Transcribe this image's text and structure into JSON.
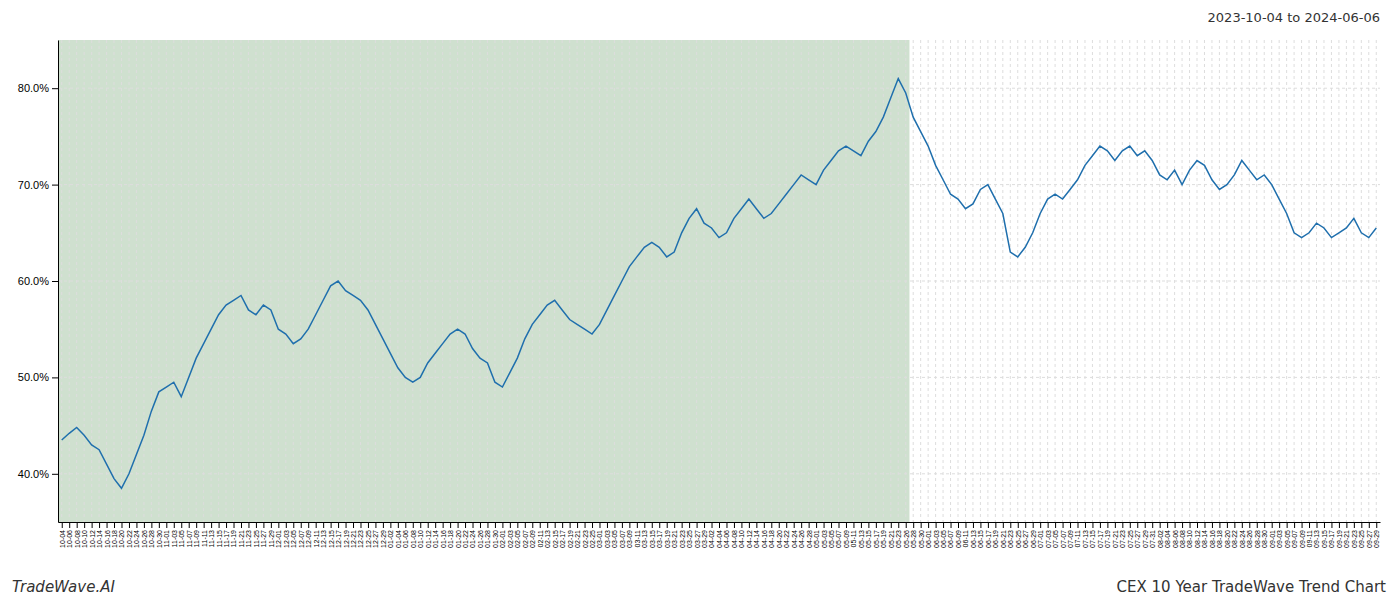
{
  "chart_data": {
    "type": "line",
    "title": "CEX 10 Year TradeWave Trend Chart",
    "subtitle": "2023-10-04 to 2024-06-06",
    "annotations": [
      "TradeWave.AI"
    ],
    "color": "#1f6fad",
    "grid": true,
    "ylim": [
      35.0,
      85.0
    ],
    "yticks": [
      {
        "value": 40.0,
        "label": "40.0%"
      },
      {
        "value": 50.0,
        "label": "50.0%"
      },
      {
        "value": 60.0,
        "label": "60.0%"
      },
      {
        "value": 70.0,
        "label": "70.0%"
      },
      {
        "value": 80.0,
        "label": "80.0%"
      }
    ],
    "shaded_region": {
      "start": "10-04",
      "end": "05-26",
      "color": "#cfe0cf"
    },
    "categories": [
      "10-04",
      "10-06",
      "10-08",
      "10-10",
      "10-12",
      "10-14",
      "10-16",
      "10-18",
      "10-20",
      "10-22",
      "10-24",
      "10-26",
      "10-28",
      "10-30",
      "11-01",
      "11-03",
      "11-05",
      "11-07",
      "11-09",
      "11-11",
      "11-13",
      "11-15",
      "11-17",
      "11-19",
      "11-21",
      "11-23",
      "11-25",
      "11-27",
      "11-29",
      "12-01",
      "12-03",
      "12-05",
      "12-07",
      "12-09",
      "12-11",
      "12-13",
      "12-15",
      "12-17",
      "12-19",
      "12-21",
      "12-23",
      "12-25",
      "12-27",
      "12-29",
      "01-02",
      "01-04",
      "01-06",
      "01-08",
      "01-10",
      "01-12",
      "01-14",
      "01-16",
      "01-18",
      "01-20",
      "01-22",
      "01-24",
      "01-26",
      "01-28",
      "01-30",
      "02-01",
      "02-03",
      "02-05",
      "02-07",
      "02-09",
      "02-11",
      "02-13",
      "02-15",
      "02-17",
      "02-19",
      "02-21",
      "02-23",
      "02-25",
      "03-01",
      "03-03",
      "03-05",
      "03-07",
      "03-09",
      "03-11",
      "03-13",
      "03-15",
      "03-17",
      "03-19",
      "03-21",
      "03-23",
      "03-25",
      "03-27",
      "03-29",
      "04-02",
      "04-04",
      "04-06",
      "04-08",
      "04-10",
      "04-12",
      "04-14",
      "04-16",
      "04-18",
      "04-20",
      "04-22",
      "04-24",
      "04-26",
      "04-28",
      "05-01",
      "05-03",
      "05-05",
      "05-07",
      "05-09",
      "05-11",
      "05-13",
      "05-15",
      "05-17",
      "05-19",
      "05-21",
      "05-23",
      "05-26",
      "05-28",
      "05-30",
      "06-01",
      "06-03",
      "06-05",
      "06-07",
      "06-09",
      "06-11",
      "06-13",
      "06-15",
      "06-17",
      "06-19",
      "06-21",
      "06-23",
      "06-25",
      "06-27",
      "06-29",
      "07-01",
      "07-03",
      "07-05",
      "07-07",
      "07-09",
      "07-11",
      "07-13",
      "07-15",
      "07-17",
      "07-19",
      "07-21",
      "07-23",
      "07-25",
      "07-27",
      "07-29",
      "07-31",
      "08-02",
      "08-04",
      "08-06",
      "08-08",
      "08-10",
      "08-12",
      "08-14",
      "08-16",
      "08-18",
      "08-20",
      "08-22",
      "08-24",
      "08-26",
      "08-28",
      "08-30",
      "09-01",
      "09-03",
      "09-05",
      "09-07",
      "09-09",
      "09-11",
      "09-13",
      "09-15",
      "09-17",
      "09-19",
      "09-21",
      "09-23",
      "09-25",
      "09-27",
      "09-29"
    ],
    "values": [
      43.5,
      44.2,
      44.8,
      44.0,
      43.0,
      42.5,
      41.0,
      39.5,
      38.5,
      40.0,
      42.0,
      44.0,
      46.5,
      48.5,
      49.0,
      49.5,
      48.0,
      50.0,
      52.0,
      53.5,
      55.0,
      56.5,
      57.5,
      58.0,
      58.5,
      57.0,
      56.5,
      57.5,
      57.0,
      55.0,
      54.5,
      53.5,
      54.0,
      55.0,
      56.5,
      58.0,
      59.5,
      60.0,
      59.0,
      58.5,
      58.0,
      57.0,
      55.5,
      54.0,
      52.5,
      51.0,
      50.0,
      49.5,
      50.0,
      51.5,
      52.5,
      53.5,
      54.5,
      55.0,
      54.5,
      53.0,
      52.0,
      51.5,
      49.5,
      49.0,
      50.5,
      52.0,
      54.0,
      55.5,
      56.5,
      57.5,
      58.0,
      57.0,
      56.0,
      55.5,
      55.0,
      54.5,
      55.5,
      57.0,
      58.5,
      60.0,
      61.5,
      62.5,
      63.5,
      64.0,
      63.5,
      62.5,
      63.0,
      65.0,
      66.5,
      67.5,
      66.0,
      65.5,
      64.5,
      65.0,
      66.5,
      67.5,
      68.5,
      67.5,
      66.5,
      67.0,
      68.0,
      69.0,
      70.0,
      71.0,
      70.5,
      70.0,
      71.5,
      72.5,
      73.5,
      74.0,
      73.5,
      73.0,
      74.5,
      75.5,
      77.0,
      79.0,
      81.0,
      79.5,
      77.0,
      75.5,
      74.0,
      72.0,
      70.5,
      69.0,
      68.5,
      67.5,
      68.0,
      69.5,
      70.0,
      68.5,
      67.0,
      63.0,
      62.5,
      63.5,
      65.0,
      67.0,
      68.5,
      69.0,
      68.5,
      69.5,
      70.5,
      72.0,
      73.0,
      74.0,
      73.5,
      72.5,
      73.5,
      74.0,
      73.0,
      73.5,
      72.5,
      71.0,
      70.5,
      71.5,
      70.0,
      71.5,
      72.5,
      72.0,
      70.5,
      69.5,
      70.0,
      71.0,
      72.5,
      71.5,
      70.5,
      71.0,
      70.0,
      68.5,
      67.0,
      65.0,
      64.5,
      65.0,
      66.0,
      65.5,
      64.5,
      65.0,
      65.5,
      66.5,
      65.0,
      64.5,
      65.5
    ]
  }
}
